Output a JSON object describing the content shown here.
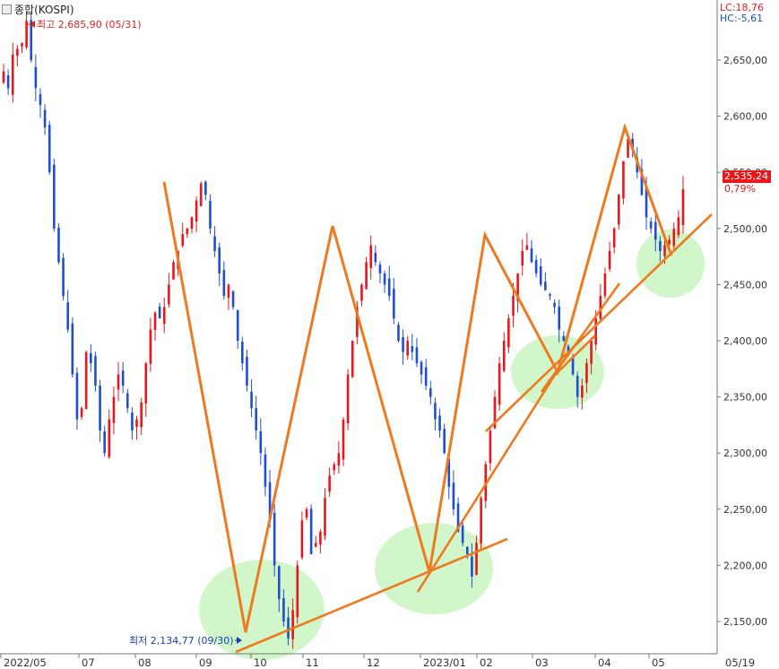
{
  "title": "종합(KOSPI)",
  "corner": {
    "lc": "LC:18,76",
    "hc": "HC:-5,61"
  },
  "current": {
    "price": "2,535,24",
    "pct": "0,79%"
  },
  "colors": {
    "up": "#e8171b",
    "down": "#1f4fd1",
    "trend": "#ee7a20",
    "zone": "#c8f5c0"
  },
  "chart_data": {
    "type": "candlestick",
    "y_ticks": [
      "2,650,00",
      "2,600,00",
      "2,550,00",
      "2,500,00",
      "2,450,00",
      "2,400,00",
      "2,350,00",
      "2,300,00",
      "2,250,00",
      "2,200,00",
      "2,150,00"
    ],
    "y_tick_values": [
      2650,
      2600,
      2550,
      2500,
      2450,
      2400,
      2350,
      2300,
      2250,
      2200,
      2150
    ],
    "x_ticks": [
      "2022/05",
      "07",
      "08",
      "09",
      "10",
      "11",
      "12",
      "2023/01",
      "02",
      "03",
      "04",
      "05",
      "05/19"
    ],
    "ylim": [
      2123,
      2692
    ],
    "high_annotation": {
      "label": "최고 2,685,90 (05/31)",
      "value": 2685.9,
      "date": "2022/05/31"
    },
    "low_annotation": {
      "label": "최저 2,134,77 (09/30)",
      "value": 2134.77,
      "date": "2022/09/30"
    },
    "series": [
      {
        "name": "",
        "closes": [
          2640,
          2625,
          2655,
          2660,
          2665,
          2685,
          2650,
          2625,
          2610,
          2590,
          2550,
          2500,
          2470,
          2440,
          2410,
          2370,
          2330,
          2340,
          2390,
          2380,
          2360,
          2320,
          2300,
          2330,
          2350,
          2370,
          2360,
          2340,
          2320,
          2330,
          2345,
          2380,
          2410,
          2425,
          2420,
          2430,
          2450,
          2470,
          2480,
          2495,
          2500,
          2510,
          2525,
          2540,
          2530,
          2500,
          2480,
          2460,
          2440,
          2450,
          2430,
          2400,
          2380,
          2360,
          2340,
          2320,
          2300,
          2270,
          2240,
          2200,
          2170,
          2150,
          2135,
          2160,
          2200,
          2240,
          2250,
          2210,
          2220,
          2230,
          2260,
          2280,
          2290,
          2300,
          2330,
          2370,
          2400,
          2430,
          2450,
          2470,
          2485,
          2470,
          2460,
          2450,
          2440,
          2420,
          2400,
          2390,
          2400,
          2390,
          2380,
          2370,
          2360,
          2350,
          2330,
          2320,
          2300,
          2270,
          2250,
          2230,
          2220,
          2210,
          2190,
          2220,
          2260,
          2290,
          2320,
          2350,
          2380,
          2400,
          2420,
          2440,
          2460,
          2480,
          2485,
          2470,
          2460,
          2450,
          2445,
          2440,
          2430,
          2410,
          2400,
          2390,
          2370,
          2350,
          2360,
          2380,
          2400,
          2420,
          2440,
          2460,
          2480,
          2500,
          2530,
          2560,
          2580,
          2570,
          2550,
          2530,
          2510,
          2500,
          2490,
          2480,
          2485,
          2490,
          2500,
          2510,
          2535
        ]
      }
    ]
  }
}
